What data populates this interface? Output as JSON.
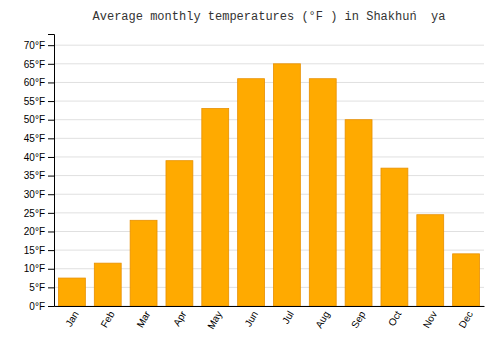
{
  "chart_data": {
    "type": "bar",
    "title": "Average monthly temperatures (°F ) in Shakhuń  ya",
    "categories": [
      "Jan",
      "Feb",
      "Mar",
      "Apr",
      "May",
      "Jun",
      "Jul",
      "Aug",
      "Sep",
      "Oct",
      "Nov",
      "Dec"
    ],
    "values": [
      7.5,
      11.5,
      23,
      39,
      53,
      61,
      65,
      61,
      50,
      37,
      24.5,
      14
    ],
    "color": "#FFAA00",
    "ylim": [
      0,
      73
    ],
    "yticks": [
      {
        "value": 0,
        "label": "0°F"
      },
      {
        "value": 5,
        "label": "5°F"
      },
      {
        "value": 10,
        "label": "10°F"
      },
      {
        "value": 15,
        "label": "15°F"
      },
      {
        "value": 20,
        "label": "20°F"
      },
      {
        "value": 25,
        "label": "25°F"
      },
      {
        "value": 30,
        "label": "30°F"
      },
      {
        "value": 35,
        "label": "35°F"
      },
      {
        "value": 40,
        "label": "40°F"
      },
      {
        "value": 45,
        "label": "45°F"
      },
      {
        "value": 50,
        "label": "50°F"
      },
      {
        "value": 55,
        "label": "55°F"
      },
      {
        "value": 60,
        "label": "60°F"
      },
      {
        "value": 65,
        "label": "65°F"
      },
      {
        "value": 70,
        "label": "70°F"
      }
    ],
    "grid": true
  }
}
